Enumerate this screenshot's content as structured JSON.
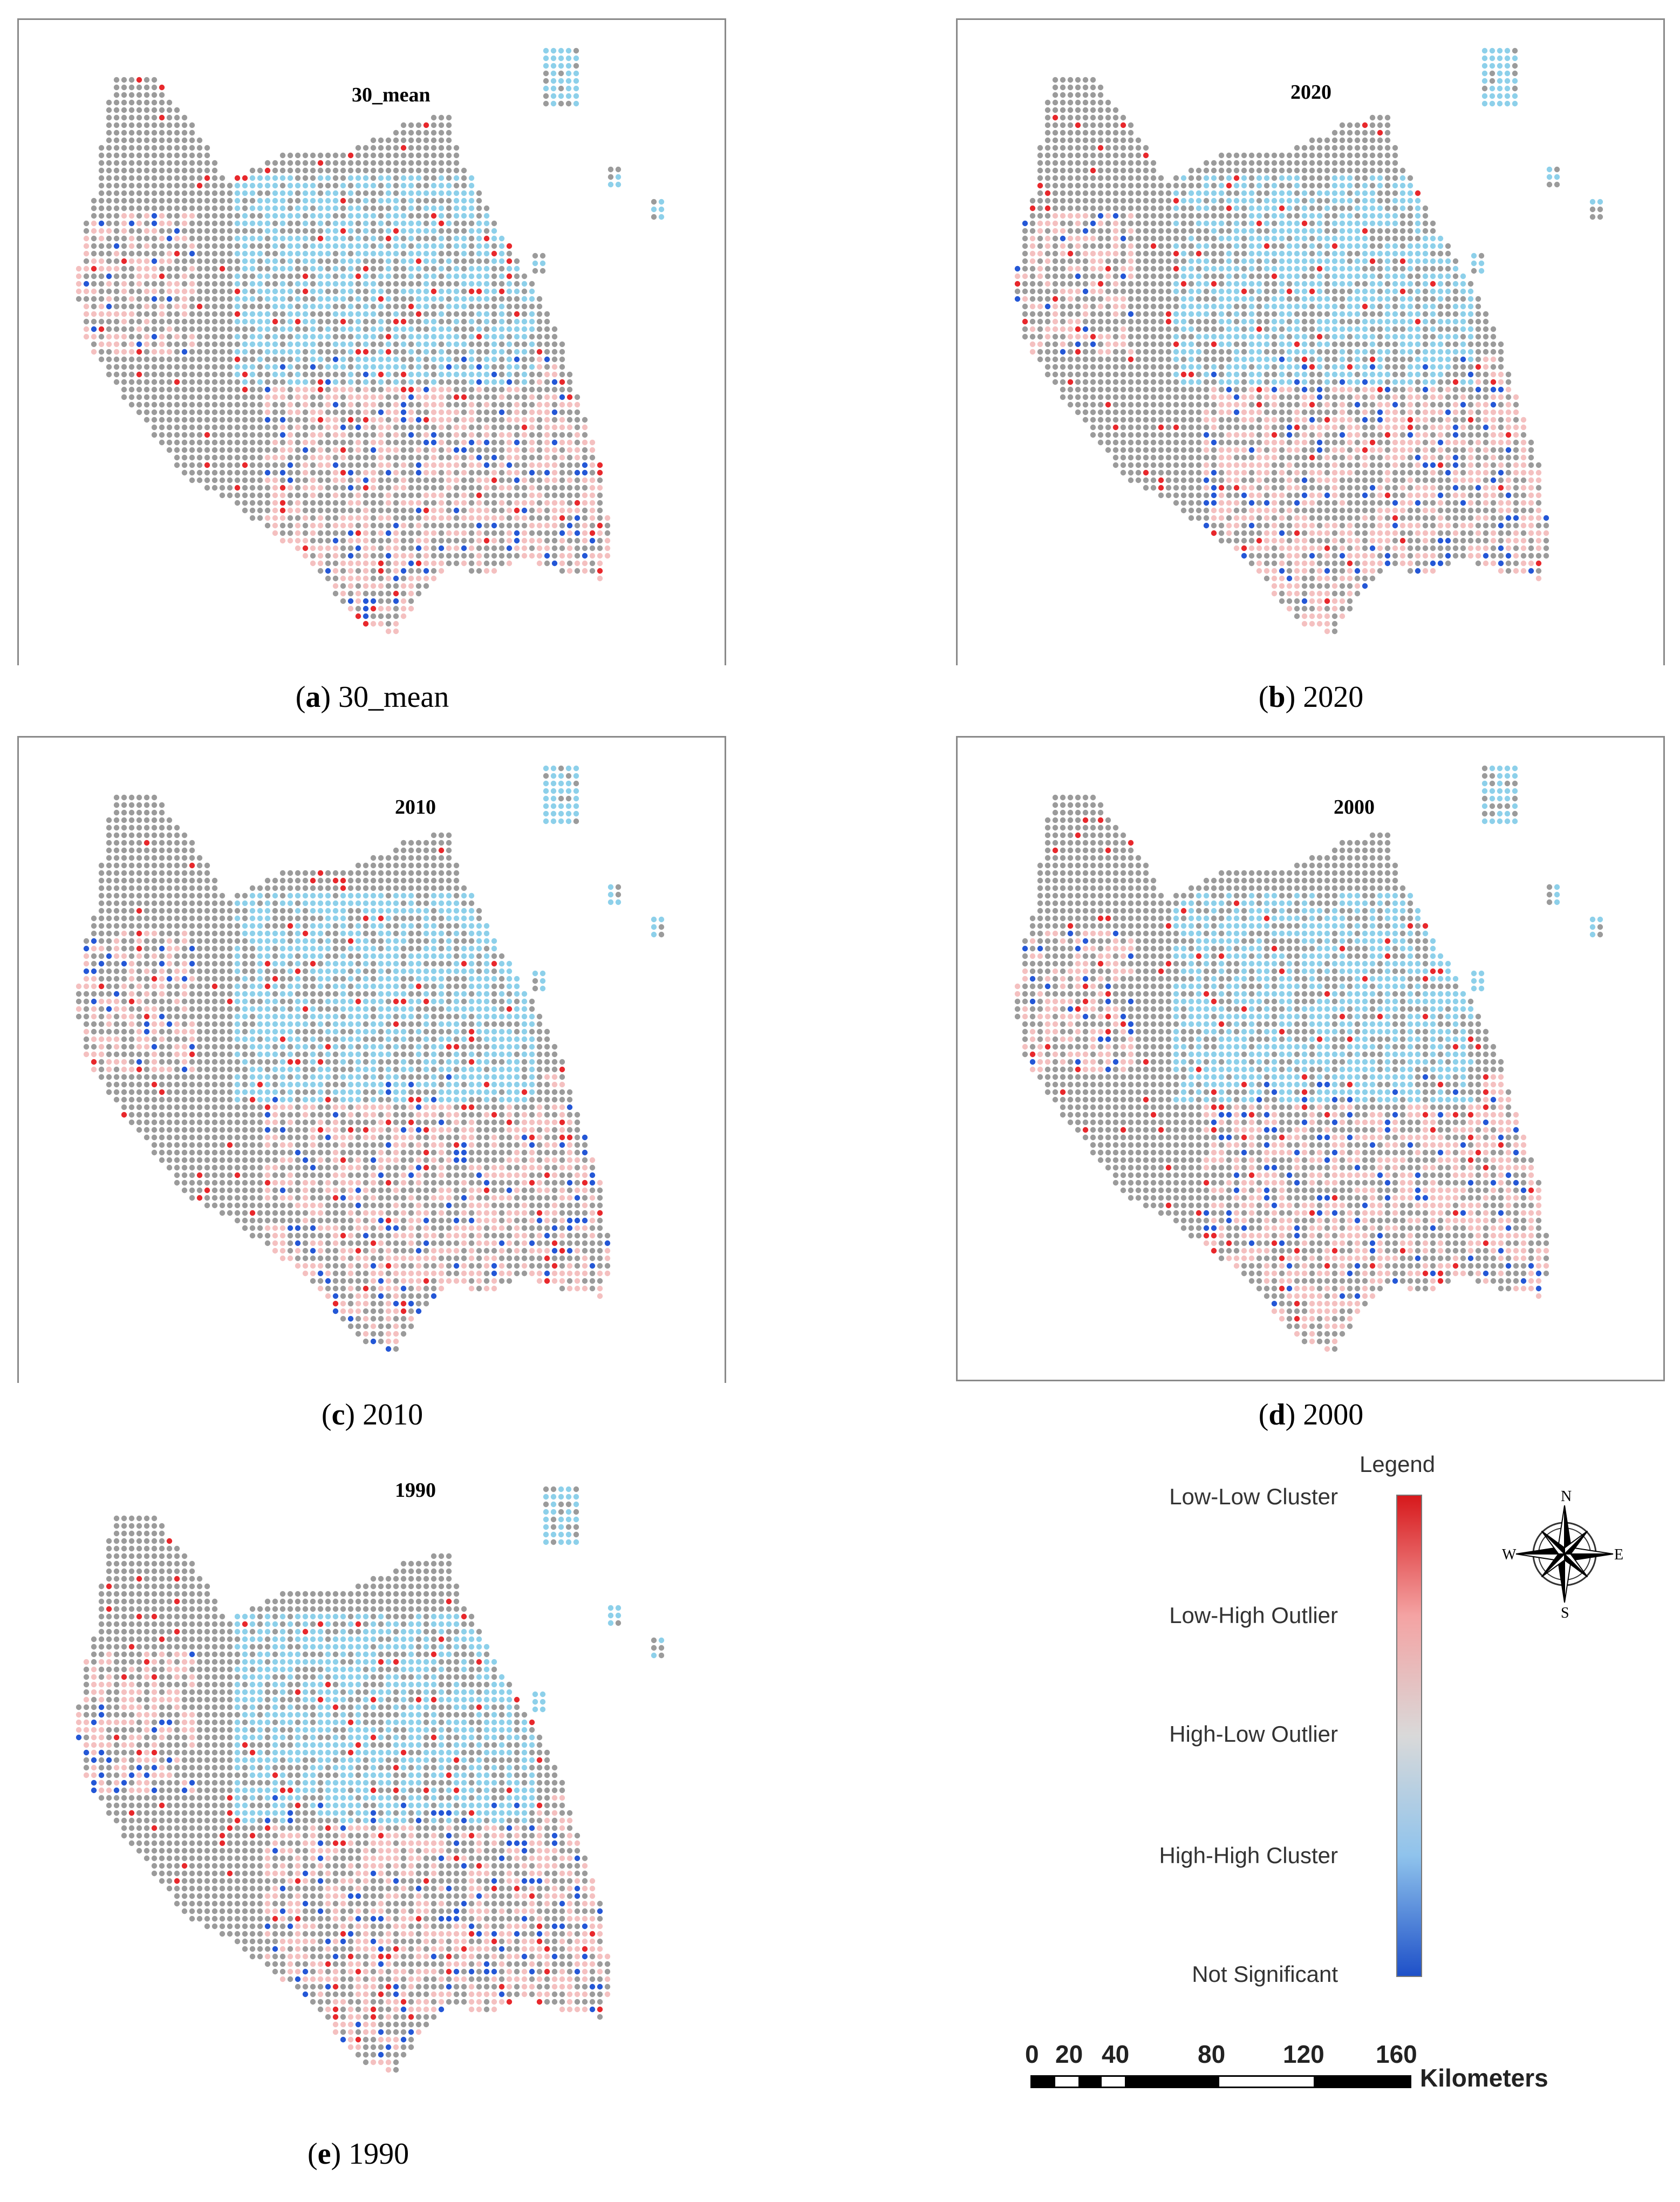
{
  "panels": [
    {
      "id": "a",
      "map_title": "30_mean",
      "caption_letter": "a",
      "caption_text": " 30_mean"
    },
    {
      "id": "b",
      "map_title": "2020",
      "caption_letter": "b",
      "caption_text": " 2020"
    },
    {
      "id": "c",
      "map_title": "2010",
      "caption_letter": "c",
      "caption_text": " 2010"
    },
    {
      "id": "d",
      "map_title": "2000",
      "caption_letter": "d",
      "caption_text": " 2000"
    },
    {
      "id": "e",
      "map_title": "1990",
      "caption_letter": "e",
      "caption_text": " 1990"
    }
  ],
  "legend": {
    "title": "Legend",
    "labels": [
      "Low-Low Cluster",
      "Low-High Outlier",
      "High-Low Outlier",
      "High-High Cluster",
      "Not Significant"
    ],
    "gradient_colors": [
      "#d7191c",
      "#f4a3a3",
      "#d9d9d9",
      "#8fc3ec",
      "#1e50c8"
    ]
  },
  "compass": {
    "n": "N",
    "e": "E",
    "s": "S",
    "w": "W"
  },
  "scale_bar": {
    "ticks": [
      "0",
      "20",
      "40",
      "80",
      "120",
      "160"
    ],
    "unit": "Kilometers"
  },
  "colors": {
    "not_significant": "#9b9b9b",
    "high_high": "#8dd0ea",
    "low_low": "#e8282c",
    "high_low": "#f4c0c0",
    "low_high": "#2457d6"
  }
}
